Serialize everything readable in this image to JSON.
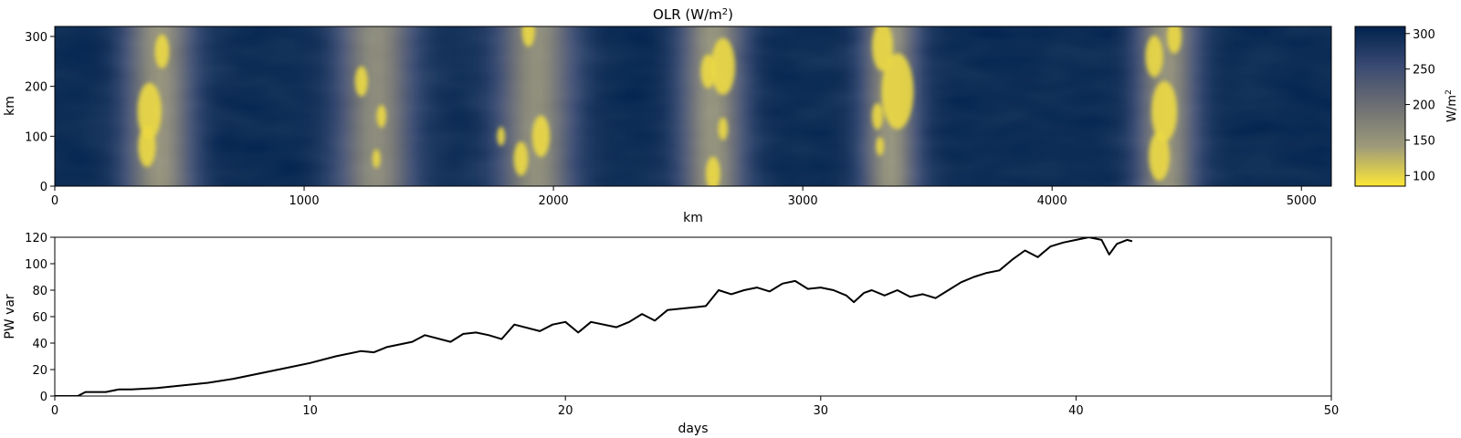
{
  "chart_data": [
    {
      "type": "heatmap",
      "title": "OLR (W/m²)",
      "title_main": "OLR (W/m",
      "title_sup": "2",
      "title_end": ")",
      "xlabel": "km",
      "ylabel": "km",
      "xlim": [
        0,
        5120
      ],
      "ylim": [
        0,
        320
      ],
      "xticks": [
        0,
        1000,
        2000,
        3000,
        4000,
        5000
      ],
      "yticks": [
        0,
        100,
        200,
        300
      ],
      "colormap": "cividis (reversed)",
      "colorbar": {
        "label": "W/m²",
        "label_main": "W/m",
        "label_sup": "2",
        "range": [
          85,
          310
        ],
        "ticks": [
          100,
          150,
          200,
          250,
          300
        ],
        "colors": [
          "#fde737",
          "#9d9a7a",
          "#6d6f73",
          "#3a4a72",
          "#00224e"
        ]
      },
      "convective_bands_km": [
        {
          "center": 420,
          "width": 340,
          "min_olr": 95
        },
        {
          "center": 1290,
          "width": 380,
          "min_olr": 105
        },
        {
          "center": 1930,
          "width": 380,
          "min_olr": 100
        },
        {
          "center": 2640,
          "width": 320,
          "min_olr": 95
        },
        {
          "center": 3350,
          "width": 280,
          "min_olr": 95
        },
        {
          "center": 4460,
          "width": 300,
          "min_olr": 95
        }
      ],
      "cloud_cells": [
        {
          "x": 370,
          "y": 80,
          "r": 22
        },
        {
          "x": 430,
          "y": 270,
          "r": 18
        },
        {
          "x": 380,
          "y": 150,
          "r": 30
        },
        {
          "x": 1230,
          "y": 210,
          "r": 16
        },
        {
          "x": 1310,
          "y": 140,
          "r": 12
        },
        {
          "x": 1290,
          "y": 55,
          "r": 10
        },
        {
          "x": 1900,
          "y": 310,
          "r": 16
        },
        {
          "x": 1870,
          "y": 55,
          "r": 18
        },
        {
          "x": 1950,
          "y": 100,
          "r": 22
        },
        {
          "x": 1790,
          "y": 100,
          "r": 10
        },
        {
          "x": 2620,
          "y": 230,
          "r": 18
        },
        {
          "x": 2680,
          "y": 115,
          "r": 12
        },
        {
          "x": 2640,
          "y": 25,
          "r": 18
        },
        {
          "x": 2680,
          "y": 240,
          "r": 30
        },
        {
          "x": 3320,
          "y": 280,
          "r": 26
        },
        {
          "x": 3380,
          "y": 190,
          "r": 40
        },
        {
          "x": 3300,
          "y": 140,
          "r": 14
        },
        {
          "x": 3310,
          "y": 80,
          "r": 10
        },
        {
          "x": 4410,
          "y": 260,
          "r": 22
        },
        {
          "x": 4450,
          "y": 150,
          "r": 32
        },
        {
          "x": 4430,
          "y": 60,
          "r": 26
        },
        {
          "x": 4490,
          "y": 300,
          "r": 18
        }
      ]
    },
    {
      "type": "line",
      "xlabel": "days",
      "ylabel": "PW var",
      "xlim": [
        0,
        50
      ],
      "ylim": [
        0,
        120
      ],
      "xticks": [
        0,
        10,
        20,
        30,
        40,
        50
      ],
      "yticks": [
        0,
        20,
        40,
        60,
        80,
        100,
        120
      ],
      "series": [
        {
          "color": "#000000",
          "x": [
            0,
            0.9,
            1.2,
            2.0,
            2.5,
            3.0,
            4.0,
            5.0,
            6.0,
            7.0,
            8.0,
            9.0,
            10.0,
            11.0,
            12.0,
            12.5,
            13.0,
            14.0,
            14.5,
            15.5,
            16.0,
            16.5,
            17.0,
            17.5,
            18.0,
            19.0,
            19.5,
            20.0,
            20.5,
            21.0,
            22.0,
            22.5,
            23.0,
            23.5,
            24.0,
            25.0,
            25.5,
            26.0,
            26.5,
            27.0,
            27.5,
            28.0,
            28.5,
            29.0,
            29.5,
            30.0,
            30.5,
            31.0,
            31.3,
            31.7,
            32.0,
            32.5,
            33.0,
            33.5,
            34.0,
            34.5,
            35.0,
            35.5,
            36.0,
            36.5,
            37.0,
            37.5,
            38.0,
            38.5,
            39.0,
            39.5,
            40.0,
            40.5,
            41.0,
            41.3,
            41.6,
            42.0,
            42.2
          ],
          "y": [
            0,
            0,
            3,
            3,
            5,
            5,
            6,
            8,
            10,
            13,
            17,
            21,
            25,
            30,
            34,
            33,
            37,
            41,
            46,
            41,
            47,
            48,
            46,
            43,
            54,
            49,
            54,
            56,
            48,
            56,
            52,
            56,
            62,
            57,
            65,
            67,
            68,
            80,
            77,
            80,
            82,
            79,
            85,
            87,
            81,
            82,
            80,
            76,
            71,
            78,
            80,
            76,
            80,
            75,
            77,
            74,
            80,
            86,
            90,
            93,
            95,
            103,
            110,
            105,
            113,
            116,
            118,
            120,
            118,
            107,
            115,
            118,
            117
          ]
        }
      ]
    }
  ]
}
